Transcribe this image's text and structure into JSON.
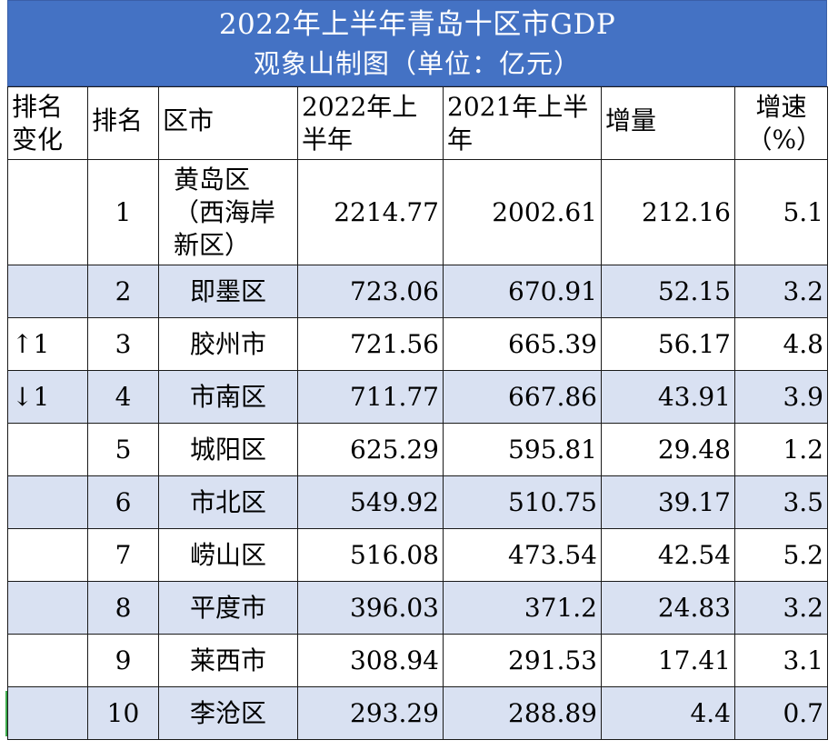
{
  "title": {
    "line1": "2022年上半年青岛十区市GDP",
    "line2": "观象山制图（单位：亿元）"
  },
  "colors": {
    "banner": "#4472c4",
    "alt_row": "#d9e1f2"
  },
  "headers": {
    "change": "排名变化",
    "rank": "排名",
    "district": "区市",
    "h1_2022": "2022年上半年",
    "h1_2021": "2021年上半年",
    "increase": "增量",
    "growth": "增速（%）"
  },
  "rows": [
    {
      "change": "",
      "rank": "1",
      "district": "黄岛区（西海岸新区）",
      "h1_2022": "2214.77",
      "h1_2021": "2002.61",
      "increase": "212.16",
      "growth": "5.1"
    },
    {
      "change": "",
      "rank": "2",
      "district": "即墨区",
      "h1_2022": "723.06",
      "h1_2021": "670.91",
      "increase": "52.15",
      "growth": "3.2"
    },
    {
      "change": "↑1",
      "rank": "3",
      "district": "胶州市",
      "h1_2022": "721.56",
      "h1_2021": "665.39",
      "increase": "56.17",
      "growth": "4.8"
    },
    {
      "change": "↓1",
      "rank": "4",
      "district": "市南区",
      "h1_2022": "711.77",
      "h1_2021": "667.86",
      "increase": "43.91",
      "growth": "3.9"
    },
    {
      "change": "",
      "rank": "5",
      "district": "城阳区",
      "h1_2022": "625.29",
      "h1_2021": "595.81",
      "increase": "29.48",
      "growth": "1.2"
    },
    {
      "change": "",
      "rank": "6",
      "district": "市北区",
      "h1_2022": "549.92",
      "h1_2021": "510.75",
      "increase": "39.17",
      "growth": "3.5"
    },
    {
      "change": "",
      "rank": "7",
      "district": "崂山区",
      "h1_2022": "516.08",
      "h1_2021": "473.54",
      "increase": "42.54",
      "growth": "5.2"
    },
    {
      "change": "",
      "rank": "8",
      "district": "平度市",
      "h1_2022": "396.03",
      "h1_2021": "371.2",
      "increase": "24.83",
      "growth": "3.2"
    },
    {
      "change": "",
      "rank": "9",
      "district": "莱西市",
      "h1_2022": "308.94",
      "h1_2021": "291.53",
      "increase": "17.41",
      "growth": "3.1"
    },
    {
      "change": "",
      "rank": "10",
      "district": "李沧区",
      "h1_2022": "293.29",
      "h1_2021": "288.89",
      "increase": "4.4",
      "growth": "0.7"
    }
  ]
}
